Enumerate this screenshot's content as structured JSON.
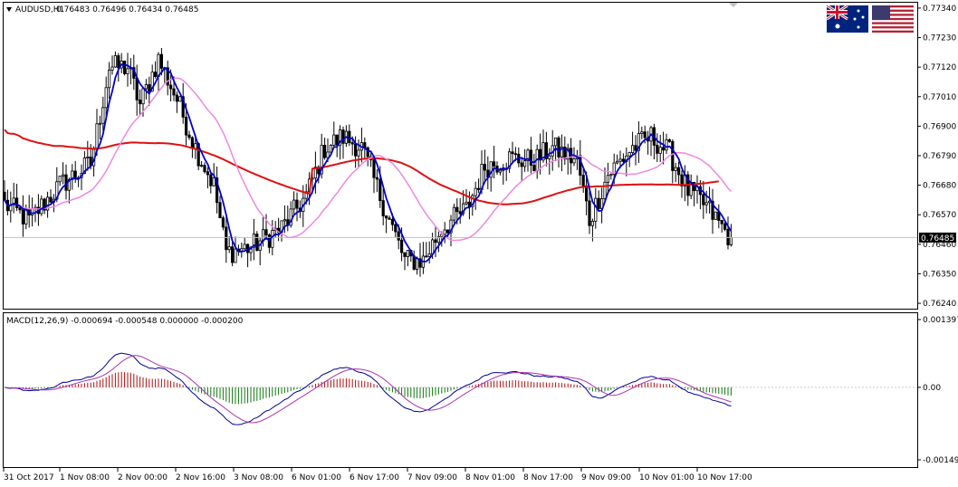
{
  "chart_data": [
    {
      "type": "candlestick",
      "symbol_header": "AUDUSD,H1",
      "ohlc_header": "0.76483 0.76496 0.76434 0.76485",
      "last_price": "0.76485",
      "ylim": [
        0.7622,
        0.7736
      ],
      "y_ticks": [
        "0.77340",
        "0.77230",
        "0.77120",
        "0.77010",
        "0.76900",
        "0.76790",
        "0.76680",
        "0.76570",
        "0.76460",
        "0.76350",
        "0.76240"
      ],
      "x_ticks": [
        "31 Oct 2017",
        "1 Nov 08:00",
        "2 Nov 00:00",
        "2 Nov 16:00",
        "3 Nov 08:00",
        "6 Nov 01:00",
        "6 Nov 17:00",
        "7 Nov 09:00",
        "8 Nov 01:00",
        "8 Nov 17:00",
        "9 Nov 09:00",
        "10 Nov 01:00",
        "10 Nov 17:00"
      ],
      "close_anchors": [
        [
          0,
          0.7661
        ],
        [
          8,
          0.7655
        ],
        [
          18,
          0.7668
        ],
        [
          28,
          0.7676
        ],
        [
          34,
          0.7712
        ],
        [
          40,
          0.7712
        ],
        [
          44,
          0.7698
        ],
        [
          50,
          0.7715
        ],
        [
          56,
          0.77
        ],
        [
          62,
          0.7682
        ],
        [
          68,
          0.7668
        ],
        [
          72,
          0.7643
        ],
        [
          80,
          0.7645
        ],
        [
          90,
          0.7652
        ],
        [
          98,
          0.7664
        ],
        [
          104,
          0.7682
        ],
        [
          110,
          0.7686
        ],
        [
          116,
          0.7682
        ],
        [
          124,
          0.7658
        ],
        [
          130,
          0.764
        ],
        [
          136,
          0.764
        ],
        [
          142,
          0.7652
        ],
        [
          150,
          0.7659
        ],
        [
          156,
          0.7675
        ],
        [
          164,
          0.7678
        ],
        [
          172,
          0.7677
        ],
        [
          178,
          0.7682
        ],
        [
          186,
          0.7677
        ],
        [
          190,
          0.7655
        ],
        [
          196,
          0.7672
        ],
        [
          204,
          0.7682
        ],
        [
          210,
          0.7686
        ],
        [
          216,
          0.768
        ],
        [
          222,
          0.7666
        ],
        [
          228,
          0.766
        ],
        [
          236,
          0.7648
        ]
      ],
      "series": [
        {
          "name": "",
          "color": "#0000cc",
          "kind": "fast-ma"
        },
        {
          "name": "",
          "color": "#ee88dd",
          "kind": "slow-ma"
        },
        {
          "name": "",
          "color": "#dd1111",
          "kind": "long-ma"
        }
      ]
    },
    {
      "type": "macd",
      "header": "MACD(12,26,9) -0.000694 -0.000548 0.000000 -0.000200",
      "ylim": [
        -0.001494,
        0.001397
      ],
      "y_ticks": [
        "0.001397",
        "0.00",
        "-0.001494"
      ],
      "main_color": "#000099",
      "signal_color": "#aa33aa",
      "hist_pos_color": "#aa1111",
      "hist_neg_color": "#117711"
    }
  ],
  "header_icons": [
    "australia-flag-icon",
    "usa-flag-icon"
  ]
}
